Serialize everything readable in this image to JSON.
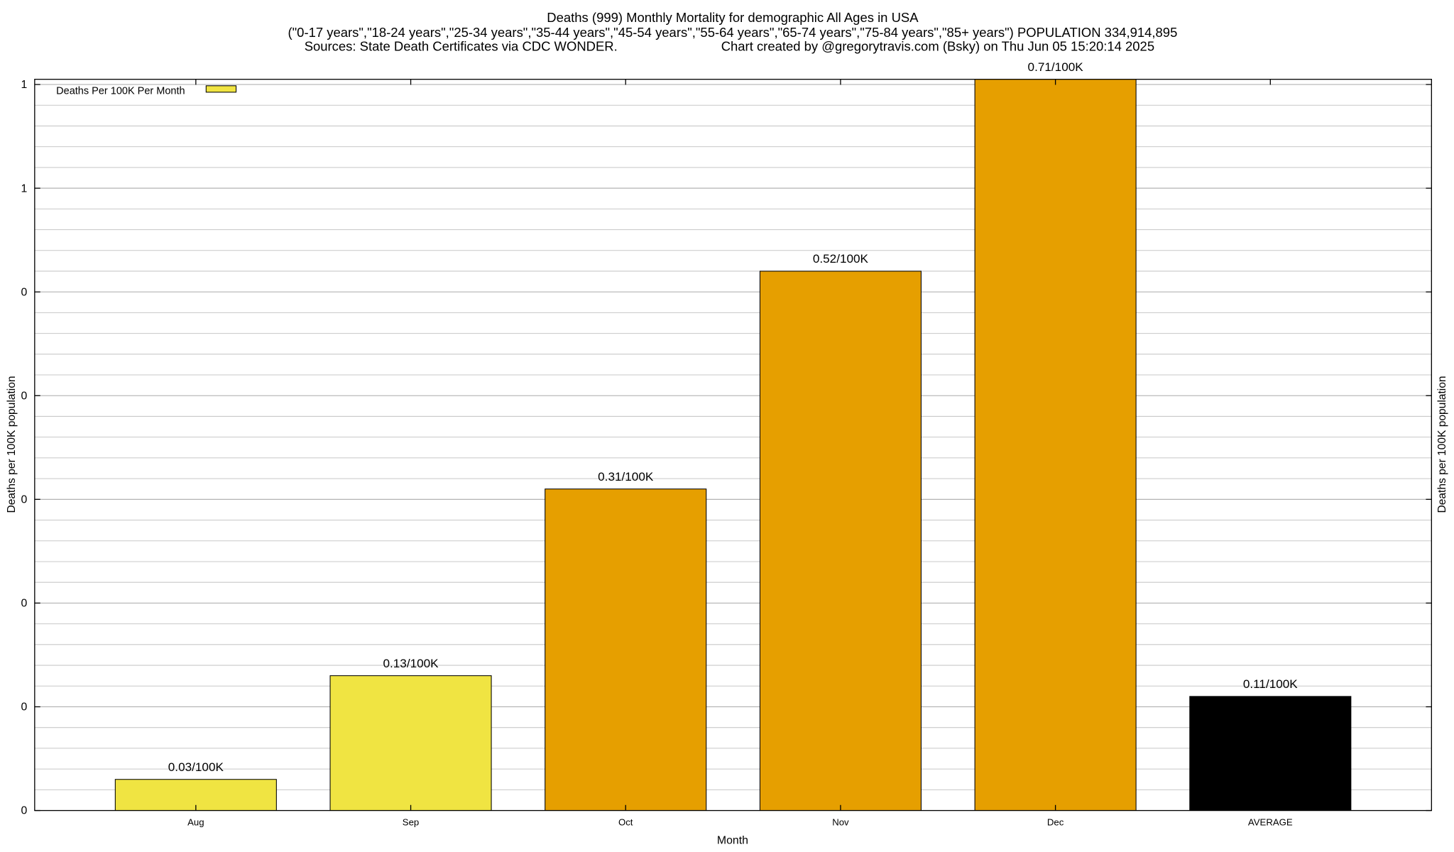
{
  "chart_data": {
    "type": "bar",
    "title": "Deaths (999) Monthly Mortality for demographic All Ages in USA",
    "subtitle": "(\"0-17 years\",\"18-24 years\",\"25-34 years\",\"35-44 years\",\"45-54 years\",\"55-64 years\",\"65-74 years\",\"75-84 years\",\"85+ years\") POPULATION 334,914,895",
    "source": "Sources: State Death Certificates via CDC WONDER.",
    "credit": "Chart created by @gregorytravis.com (Bsky) on Thu Jun 05 15:20:14 2025",
    "x_label": "Month",
    "y_label": "Deaths per 100K population",
    "y2_label": "Deaths per 100K population",
    "categories": [
      "Aug",
      "Sep",
      "Oct",
      "Nov",
      "Dec",
      "AVERAGE"
    ],
    "series": [
      {
        "name": "Deaths Per 100K Per Month",
        "color": "#f0e442",
        "values": [
          0.03,
          0.13,
          0.31,
          0.52,
          0.71,
          0.11
        ],
        "value_labels": [
          "0.03/100K",
          "0.13/100K",
          "0.31/100K",
          "0.52/100K",
          "0.71/100K",
          "0.11/100K"
        ],
        "bar_colors": [
          "#f0e442",
          "#f0e442",
          "#e69f00",
          "#e69f00",
          "#e69f00",
          "#000000"
        ]
      }
    ],
    "ylim": [
      0,
      0.705
    ],
    "yticks": [
      0,
      {
        "value": 0.1,
        "label": "0"
      },
      {
        "value": 0.2,
        "label": "0"
      },
      {
        "value": 0.3,
        "label": "0"
      },
      {
        "value": 0.4,
        "label": "0"
      },
      {
        "value": 0.5,
        "label": "0"
      },
      {
        "value": 0.6,
        "label": "1"
      },
      {
        "value": 0.7,
        "label": "1"
      }
    ],
    "grid": true,
    "legend_position": "top-left"
  }
}
